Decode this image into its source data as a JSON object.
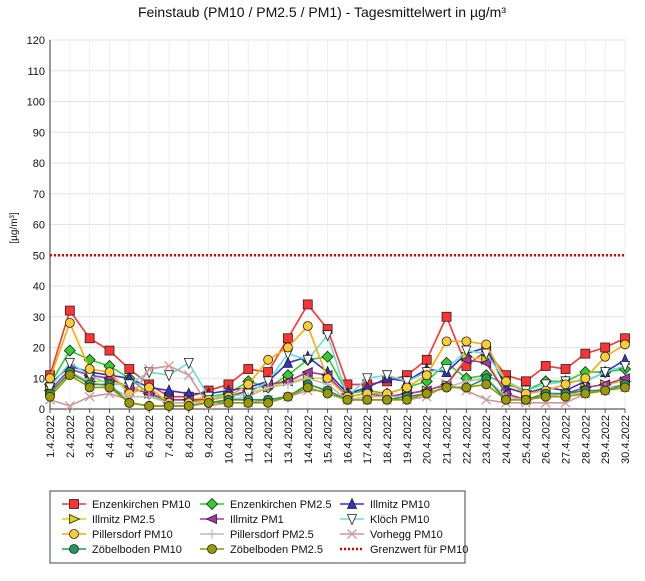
{
  "chart_data": {
    "type": "line",
    "title": "Feinstaub (PM10 / PM2.5 / PM1) -  Tagesmittelwert in µg/m³",
    "ylabel": "[µg/m³]",
    "xlabel": "",
    "ylim": [
      0,
      120
    ],
    "yticks": [
      0,
      10,
      20,
      30,
      40,
      50,
      60,
      70,
      80,
      90,
      100,
      110,
      120
    ],
    "grid": true,
    "legend_position": "bottom-left",
    "categories": [
      "1.4.2022",
      "2.4.2022",
      "3.4.2022",
      "4.4.2022",
      "5.4.2022",
      "6.4.2022",
      "7.4.2022",
      "8.4.2022",
      "9.4.2022",
      "10.4.2022",
      "11.4.2022",
      "12.4.2022",
      "13.4.2022",
      "14.4.2022",
      "15.4.2022",
      "16.4.2022",
      "17.4.2022",
      "18.4.2022",
      "19.4.2022",
      "20.4.2022",
      "21.4.2022",
      "22.4.2022",
      "23.4.2022",
      "24.4.2022",
      "25.4.2022",
      "26.4.2022",
      "27.4.2022",
      "28.4.2022",
      "29.4.2022",
      "30.4.2022"
    ],
    "series": [
      {
        "name": "Enzenkirchen PM10",
        "color": "#ff3333",
        "marker": "square",
        "fill": "#ff3333",
        "values": [
          11,
          32,
          23,
          19,
          13,
          8,
          4,
          4,
          6,
          8,
          13,
          12,
          23,
          34,
          26,
          8,
          8,
          9,
          11,
          16,
          30,
          14,
          19,
          11,
          9,
          14,
          13,
          18,
          20,
          23
        ]
      },
      {
        "name": "Enzenkirchen PM2.5",
        "color": "#33cc33",
        "marker": "diamond",
        "fill": "#33cc33",
        "values": [
          8,
          19,
          16,
          14,
          10,
          5,
          2,
          2,
          4,
          5,
          9,
          7,
          11,
          16,
          17,
          5,
          6,
          5,
          7,
          9,
          15,
          10,
          11,
          8,
          6,
          9,
          9,
          12,
          12,
          13
        ]
      },
      {
        "name": "Illmitz PM10",
        "color": "#3333cc",
        "marker": "triangle-up",
        "fill": "#3333cc",
        "values": [
          8,
          14,
          12,
          11,
          10,
          7,
          6,
          5,
          5,
          6,
          7,
          9,
          15,
          17,
          12,
          5,
          7,
          10,
          9,
          13,
          12,
          18,
          20,
          7,
          5,
          7,
          6,
          9,
          12,
          16
        ]
      },
      {
        "name": "Illmitz PM2.5",
        "color": "#e6d200",
        "marker": "triangle-right",
        "fill": "#e6d200",
        "values": [
          6,
          11,
          9,
          9,
          7,
          5,
          3,
          3,
          4,
          4,
          5,
          7,
          9,
          10,
          10,
          4,
          5,
          4,
          5,
          6,
          8,
          17,
          16,
          5,
          3,
          5,
          5,
          7,
          8,
          9
        ]
      },
      {
        "name": "Illmitz PM1",
        "color": "#aa33aa",
        "marker": "triangle-left",
        "fill": "#aa33aa",
        "values": [
          6,
          13,
          11,
          10,
          7,
          5,
          3,
          3,
          3,
          4,
          6,
          8,
          9,
          12,
          11,
          4,
          5,
          4,
          5,
          6,
          8,
          16,
          15,
          5,
          3,
          5,
          5,
          7,
          8,
          10
        ]
      },
      {
        "name": "Klöch PM10",
        "color": "#66dddd",
        "marker": "triangle-down",
        "fill": "#ffffff",
        "values": [
          7,
          15,
          11,
          8,
          8,
          12,
          11,
          15,
          4,
          4,
          5,
          9,
          18,
          16,
          24,
          4,
          10,
          11,
          9,
          12,
          13,
          19,
          18,
          9,
          6,
          8,
          9,
          9,
          12,
          14
        ]
      },
      {
        "name": "Pillersdorf PM10",
        "color": "#ffaa00",
        "marker": "circle",
        "fill": "#ffcc33",
        "values": [
          10,
          28,
          13,
          12,
          5,
          7,
          2,
          2,
          3,
          4,
          8,
          16,
          20,
          27,
          10,
          4,
          5,
          5,
          7,
          11,
          22,
          22,
          21,
          9,
          5,
          6,
          8,
          10,
          17,
          21
        ]
      },
      {
        "name": "Pillersdorf PM2.5",
        "color": "#bbbbbb",
        "marker": "cross",
        "fill": "#bbbbbb",
        "values": [
          5,
          12,
          9,
          7,
          4,
          4,
          2,
          2,
          2,
          3,
          4,
          7,
          8,
          10,
          8,
          3,
          4,
          4,
          4,
          5,
          7,
          9,
          10,
          4,
          3,
          4,
          5,
          5,
          7,
          8
        ]
      },
      {
        "name": "Vorhegg PM10",
        "color": "#cc9999",
        "marker": "x",
        "fill": "#cc9999",
        "values": [
          3,
          1,
          4,
          5,
          3,
          13,
          14,
          11,
          1,
          2,
          2,
          3,
          4,
          6,
          6,
          3,
          3,
          3,
          3,
          4,
          8,
          6,
          3,
          2,
          2,
          2,
          2,
          5,
          6,
          7
        ]
      },
      {
        "name": "Zöbelboden PM10",
        "color": "#229955",
        "marker": "circle",
        "fill": "#229955",
        "values": [
          5,
          12,
          8,
          8,
          2,
          1,
          1,
          1,
          2,
          3,
          3,
          3,
          4,
          8,
          6,
          3,
          3,
          3,
          4,
          5,
          7,
          7,
          10,
          3,
          3,
          5,
          5,
          6,
          6,
          8
        ]
      },
      {
        "name": "Zöbelboden PM2.5",
        "color": "#999900",
        "marker": "circle",
        "fill": "#999900",
        "values": [
          4,
          11,
          7,
          7,
          2,
          1,
          1,
          1,
          2,
          2,
          2,
          2,
          4,
          7,
          5,
          3,
          3,
          3,
          3,
          5,
          7,
          7,
          8,
          3,
          3,
          4,
          4,
          5,
          6,
          7
        ]
      }
    ],
    "threshold": {
      "name": "Grenzwert für PM10",
      "value": 50,
      "color": "#dd0000"
    }
  }
}
